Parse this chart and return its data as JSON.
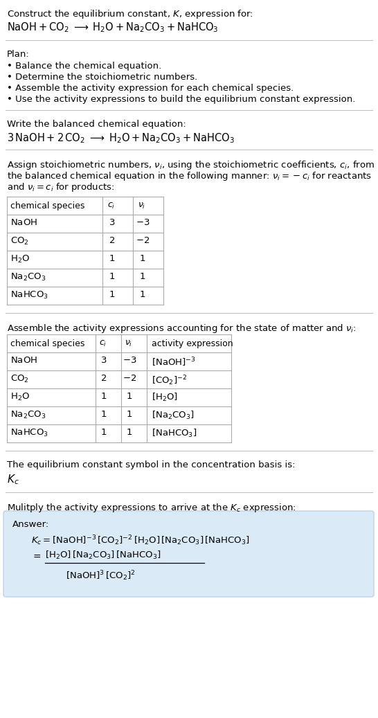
{
  "bg_color": "#ffffff",
  "text_color": "#000000",
  "title_line1": "Construct the equilibrium constant, $K$, expression for:",
  "title_line2": "$\\mathrm{NaOH} + \\mathrm{CO_2} \\;\\longrightarrow\\; \\mathrm{H_2O} + \\mathrm{Na_2CO_3} + \\mathrm{NaHCO_3}$",
  "plan_header": "Plan:",
  "plan_items": [
    "• Balance the chemical equation.",
    "• Determine the stoichiometric numbers.",
    "• Assemble the activity expression for each chemical species.",
    "• Use the activity expressions to build the equilibrium constant expression."
  ],
  "balanced_header": "Write the balanced chemical equation:",
  "balanced_eq": "$3\\,\\mathrm{NaOH} + 2\\,\\mathrm{CO_2} \\;\\longrightarrow\\; \\mathrm{H_2O} + \\mathrm{Na_2CO_3} + \\mathrm{NaHCO_3}$",
  "stoich_header_parts": [
    "Assign stoichiometric numbers, $\\nu_i$, using the stoichiometric coefficients, $c_i$, from",
    "the balanced chemical equation in the following manner: $\\nu_i = -c_i$ for reactants",
    "and $\\nu_i = c_i$ for products:"
  ],
  "table1_headers": [
    "chemical species",
    "$c_i$",
    "$\\nu_i$"
  ],
  "table1_rows": [
    [
      "$\\mathrm{NaOH}$",
      "3",
      "$-3$"
    ],
    [
      "$\\mathrm{CO_2}$",
      "2",
      "$-2$"
    ],
    [
      "$\\mathrm{H_2O}$",
      "1",
      "1"
    ],
    [
      "$\\mathrm{Na_2CO_3}$",
      "1",
      "1"
    ],
    [
      "$\\mathrm{NaHCO_3}$",
      "1",
      "1"
    ]
  ],
  "activity_header": "Assemble the activity expressions accounting for the state of matter and $\\nu_i$:",
  "table2_headers": [
    "chemical species",
    "$c_i$",
    "$\\nu_i$",
    "activity expression"
  ],
  "table2_rows": [
    [
      "$\\mathrm{NaOH}$",
      "3",
      "$-3$",
      "$[\\mathrm{NaOH}]^{-3}$"
    ],
    [
      "$\\mathrm{CO_2}$",
      "2",
      "$-2$",
      "$[\\mathrm{CO_2}]^{-2}$"
    ],
    [
      "$\\mathrm{H_2O}$",
      "1",
      "1",
      "$[\\mathrm{H_2O}]$"
    ],
    [
      "$\\mathrm{Na_2CO_3}$",
      "1",
      "1",
      "$[\\mathrm{Na_2CO_3}]$"
    ],
    [
      "$\\mathrm{NaHCO_3}$",
      "1",
      "1",
      "$[\\mathrm{NaHCO_3}]$"
    ]
  ],
  "kc_symbol_header": "The equilibrium constant symbol in the concentration basis is:",
  "kc_symbol": "$K_c$",
  "multiply_header": "Mulitply the activity expressions to arrive at the $K_c$ expression:",
  "answer_box_color": "#daeaf7",
  "answer_label": "Answer:",
  "answer_line1": "$K_c = [\\mathrm{NaOH}]^{-3}\\,[\\mathrm{CO_2}]^{-2}\\,[\\mathrm{H_2O}]\\,[\\mathrm{Na_2CO_3}]\\,[\\mathrm{NaHCO_3}]$",
  "answer_line2_num": "$[\\mathrm{H_2O}]\\,[\\mathrm{Na_2CO_3}]\\,[\\mathrm{NaHCO_3}]$",
  "answer_line2_den": "$[\\mathrm{NaOH}]^3\\,[\\mathrm{CO_2}]^2$",
  "answer_equals": "$=$"
}
